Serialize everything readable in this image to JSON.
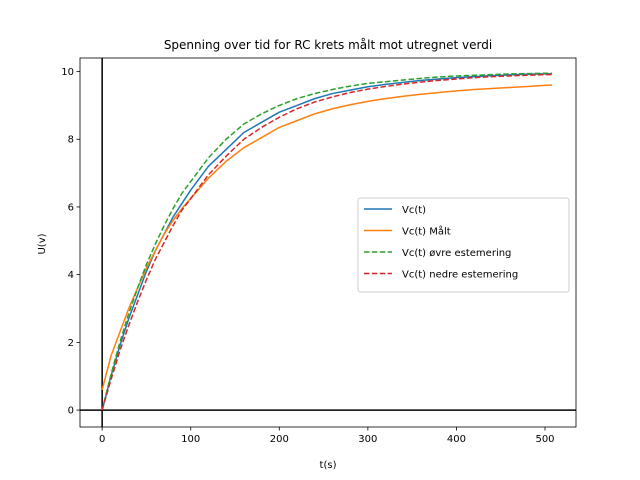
{
  "chart_data": {
    "type": "line",
    "title": "Spenning over tid for RC krets målt mot utregnet verdi",
    "xlabel": "t(s)",
    "ylabel": "U(v)",
    "xlim": [
      -25,
      535
    ],
    "ylim": [
      -0.5,
      10.4
    ],
    "xticks": [
      0,
      100,
      200,
      300,
      400,
      500
    ],
    "yticks": [
      0,
      2,
      4,
      6,
      8,
      10
    ],
    "grid": false,
    "legend_position": "center-right",
    "reference_lines": [
      {
        "orientation": "vertical",
        "value": 0,
        "color": "#000000"
      },
      {
        "orientation": "horizontal",
        "value": 0,
        "color": "#000000"
      }
    ],
    "series": [
      {
        "name": "Vc(t)",
        "color": "#1f77b4",
        "style": "solid",
        "x": [
          0,
          10,
          20,
          30,
          40,
          50,
          60,
          70,
          80,
          90,
          100,
          120,
          140,
          160,
          180,
          200,
          220,
          240,
          260,
          280,
          300,
          320,
          340,
          360,
          380,
          400,
          420,
          440,
          460,
          480,
          500,
          508
        ],
        "y": [
          0.0,
          1.0,
          1.9,
          2.7,
          3.4,
          4.1,
          4.7,
          5.2,
          5.7,
          6.1,
          6.5,
          7.2,
          7.7,
          8.2,
          8.5,
          8.8,
          9.0,
          9.2,
          9.35,
          9.45,
          9.55,
          9.62,
          9.68,
          9.74,
          9.78,
          9.82,
          9.85,
          9.88,
          9.9,
          9.92,
          9.93,
          9.93
        ]
      },
      {
        "name": "Vc(t) Målt",
        "color": "#ff7f0e",
        "style": "solid",
        "x": [
          0,
          10,
          20,
          30,
          40,
          50,
          60,
          70,
          80,
          90,
          100,
          120,
          140,
          160,
          180,
          200,
          220,
          240,
          260,
          280,
          300,
          320,
          340,
          360,
          380,
          400,
          420,
          440,
          460,
          480,
          500,
          508
        ],
        "y": [
          0.6,
          1.6,
          2.3,
          3.0,
          3.6,
          4.2,
          4.7,
          5.2,
          5.6,
          5.95,
          6.25,
          6.85,
          7.35,
          7.75,
          8.05,
          8.35,
          8.55,
          8.75,
          8.9,
          9.02,
          9.12,
          9.2,
          9.27,
          9.33,
          9.38,
          9.43,
          9.47,
          9.5,
          9.53,
          9.56,
          9.59,
          9.6
        ]
      },
      {
        "name": "Vc(t) øvre estemering",
        "color": "#2ca02c",
        "style": "dashed",
        "x": [
          0,
          10,
          20,
          30,
          40,
          50,
          60,
          70,
          80,
          90,
          100,
          120,
          140,
          160,
          180,
          200,
          220,
          240,
          260,
          280,
          300,
          320,
          340,
          360,
          380,
          400,
          420,
          440,
          460,
          480,
          500,
          508
        ],
        "y": [
          0.0,
          1.05,
          2.0,
          2.85,
          3.6,
          4.3,
          4.9,
          5.45,
          5.95,
          6.4,
          6.75,
          7.45,
          8.0,
          8.45,
          8.75,
          9.0,
          9.2,
          9.35,
          9.47,
          9.57,
          9.65,
          9.7,
          9.75,
          9.8,
          9.84,
          9.87,
          9.89,
          9.91,
          9.93,
          9.94,
          9.95,
          9.95
        ]
      },
      {
        "name": "Vc(t) nedre estemering",
        "color": "#d62728",
        "style": "dashed",
        "x": [
          0,
          10,
          20,
          30,
          40,
          50,
          60,
          70,
          80,
          90,
          100,
          120,
          140,
          160,
          180,
          200,
          220,
          240,
          260,
          280,
          300,
          320,
          340,
          360,
          380,
          400,
          420,
          440,
          460,
          480,
          500,
          508
        ],
        "y": [
          0.0,
          0.9,
          1.75,
          2.5,
          3.2,
          3.85,
          4.45,
          4.95,
          5.45,
          5.9,
          6.25,
          6.95,
          7.5,
          8.0,
          8.35,
          8.65,
          8.9,
          9.1,
          9.25,
          9.38,
          9.48,
          9.56,
          9.63,
          9.69,
          9.74,
          9.78,
          9.82,
          9.85,
          9.87,
          9.89,
          9.91,
          9.91
        ]
      }
    ]
  }
}
